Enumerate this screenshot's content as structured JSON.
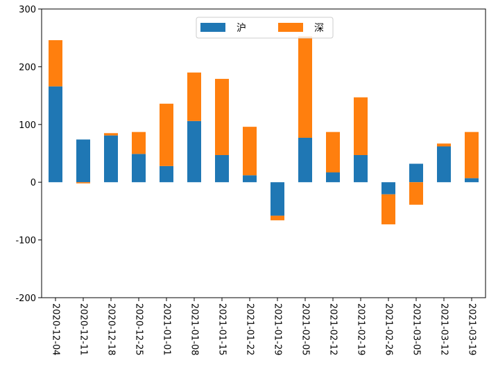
{
  "chart_data": {
    "type": "bar",
    "stacked": true,
    "categories": [
      "2020-12-04",
      "2020-12-11",
      "2020-12-18",
      "2020-12-25",
      "2021-01-01",
      "2021-01-08",
      "2021-01-15",
      "2021-01-22",
      "2021-01-29",
      "2021-02-05",
      "2021-02-12",
      "2021-02-19",
      "2021-02-26",
      "2021-03-05",
      "2021-03-12",
      "2021-03-19"
    ],
    "series": [
      {
        "name": "沪",
        "color": "#1f77b4",
        "values": [
          166,
          74,
          81,
          49,
          28,
          106,
          47,
          12,
          -58,
          77,
          17,
          47,
          -21,
          32,
          62,
          7
        ]
      },
      {
        "name": "深",
        "color": "#ff7f0e",
        "values": [
          80,
          -2,
          4,
          38,
          108,
          84,
          132,
          84,
          -8,
          176,
          70,
          100,
          -52,
          -39,
          5,
          80
        ]
      }
    ],
    "ylim": [
      -200,
      300
    ],
    "yticks": [
      -200,
      -100,
      0,
      100,
      200,
      300
    ],
    "legend": {
      "placement": "upper-center",
      "columns": 2
    },
    "grid": false,
    "title": "",
    "xlabel": "",
    "ylabel": ""
  }
}
